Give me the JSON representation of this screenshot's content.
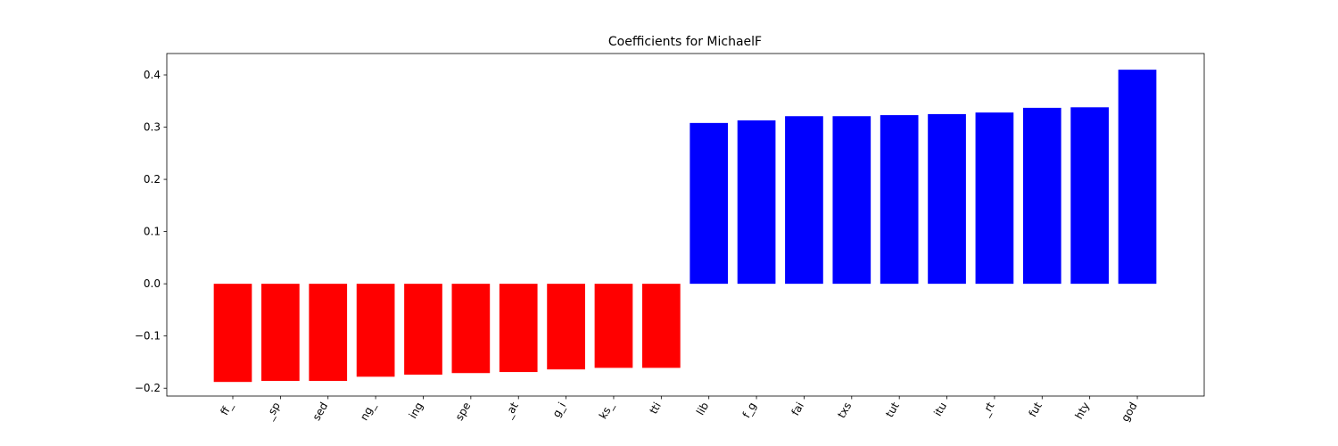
{
  "chart_data": {
    "type": "bar",
    "title": "Coefficients for MichaelF",
    "categories": [
      "ff_",
      "_sp",
      "sed",
      "ng_",
      "ing",
      "spe",
      "_at",
      "g_i",
      "ks_",
      "tti",
      "lib",
      "f_g",
      "fai",
      "txs",
      "tut",
      "itu",
      "_rt",
      "fut",
      "hty",
      "god"
    ],
    "values": [
      -0.188,
      -0.186,
      -0.186,
      -0.178,
      -0.174,
      -0.171,
      -0.169,
      -0.164,
      -0.161,
      -0.161,
      0.308,
      0.313,
      0.321,
      0.321,
      0.323,
      0.325,
      0.328,
      0.337,
      0.338,
      0.41
    ],
    "colors": [
      "#ff0000",
      "#ff0000",
      "#ff0000",
      "#ff0000",
      "#ff0000",
      "#ff0000",
      "#ff0000",
      "#ff0000",
      "#ff0000",
      "#ff0000",
      "#0000ff",
      "#0000ff",
      "#0000ff",
      "#0000ff",
      "#0000ff",
      "#0000ff",
      "#0000ff",
      "#0000ff",
      "#0000ff",
      "#0000ff"
    ],
    "ylim": [
      -0.215,
      0.441
    ],
    "yticks": [
      {
        "value": -0.2,
        "label": "−0.2"
      },
      {
        "value": -0.1,
        "label": "−0.1"
      },
      {
        "value": 0,
        "label": "0.0"
      },
      0.1,
      0.2,
      0.3,
      0.4
    ],
    "grid": false
  }
}
